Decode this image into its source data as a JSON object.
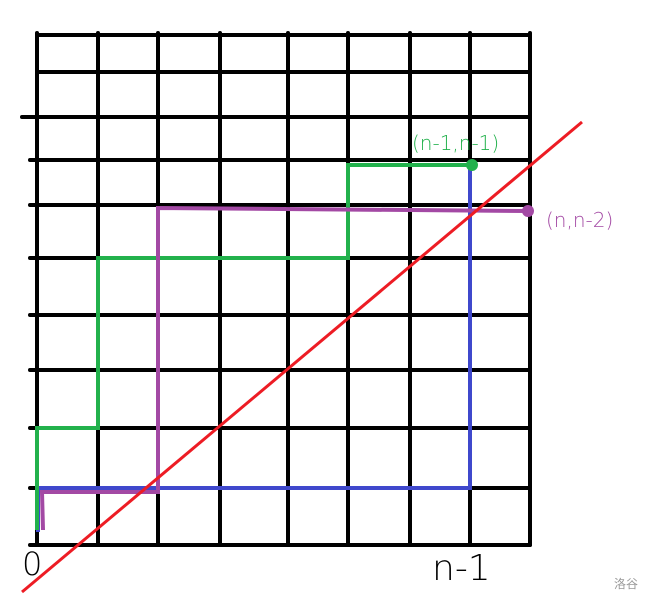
{
  "labels": {
    "green_point": "(n-1,n-1)",
    "purple_point": "(n,n-2)",
    "origin": "0",
    "x_end": "n-1",
    "watermark": "洛谷"
  },
  "colors": {
    "grid": "#000000",
    "green_path": "#22b14c",
    "purple_path": "#a349a4",
    "blue_path": "#3f48cc",
    "diagonal": "#ed1c24"
  }
}
